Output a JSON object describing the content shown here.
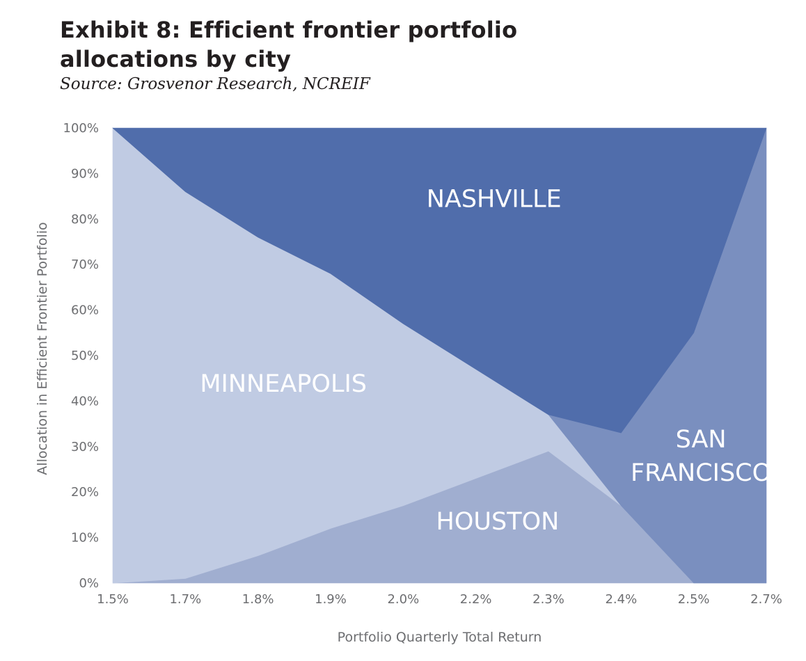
{
  "title_lines": [
    "Exhibit 8: Efficient frontier portfolio",
    "allocations by city"
  ],
  "subtitle": "Source: Grosvenor Research, NCREIF",
  "chart_data": {
    "type": "area",
    "stacked": true,
    "categories": [
      "1.5%",
      "1.7%",
      "1.8%",
      "1.9%",
      "2.0%",
      "2.2%",
      "2.3%",
      "2.4%",
      "2.5%",
      "2.7%"
    ],
    "xlabel": "Portfolio Quarterly Total Return",
    "ylabel": "Allocation in Efficient Frontier Portfolio",
    "ylim": [
      0,
      100
    ],
    "yticks": [
      "0%",
      "10%",
      "20%",
      "30%",
      "40%",
      "50%",
      "60%",
      "70%",
      "80%",
      "90%",
      "100%"
    ],
    "grid": false,
    "series": [
      {
        "name": "HOUSTON",
        "values": [
          0,
          1,
          6,
          12,
          17,
          23,
          29,
          17,
          0,
          0
        ],
        "color": "#a0aed0"
      },
      {
        "name": "MINNEAPOLIS",
        "values": [
          100,
          85,
          70,
          56,
          40,
          24,
          8,
          0,
          0,
          0
        ],
        "color": "#c0cbe3"
      },
      {
        "name": "SAN FRANCISCO",
        "values": [
          0,
          0,
          0,
          0,
          0,
          0,
          0,
          16,
          55,
          100
        ],
        "color": "#7a8fbf"
      },
      {
        "name": "NASHVILLE",
        "values": [
          0,
          14,
          24,
          32,
          43,
          53,
          63,
          67,
          45,
          0
        ],
        "color": "#506dab"
      }
    ],
    "labels": [
      {
        "series": "NASHVILLE",
        "lines": [
          "NASHVILLE"
        ]
      },
      {
        "series": "MINNEAPOLIS",
        "lines": [
          "MINNEAPOLIS"
        ]
      },
      {
        "series": "SAN FRANCISCO",
        "lines": [
          "SAN",
          "FRANCISCO"
        ]
      },
      {
        "series": "HOUSTON",
        "lines": [
          "HOUSTON"
        ]
      }
    ]
  }
}
